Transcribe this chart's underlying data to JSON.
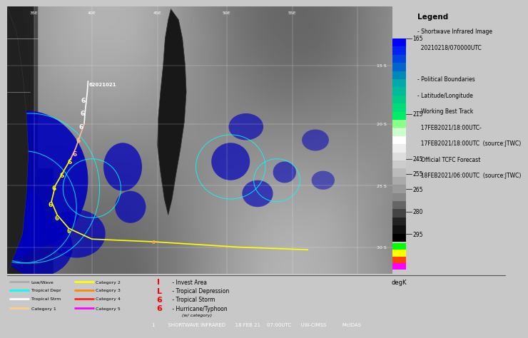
{
  "main_bg": "#c8c8c8",
  "sat_bg": "#888888",
  "legend_bg": "#ffffff",
  "bottom_legend_bg": "#d0d0d0",
  "bottom_bar_bg": "#111111",
  "bottom_bar_text": "1        SHORTWAVE INFRARED      18 FEB 21    07:00UTC      UW-CIMSS          McIDAS",
  "bottom_bar_color": "#ffffff",
  "legend_title": "Legend",
  "legend_lines": [
    "- Shortwave Infrared Image",
    "  20210218/070000UTC",
    "",
    "- Political Boundaries",
    "- Latitude/Longitude",
    "- Working Best Track",
    "  17FEB2021/18:00UTC-",
    "  17FEB2021/18:00UTC  (source:JTWC)",
    "- Official TCFC Forecast",
    "  18FEB2021/06:00UTC  (source:JTWC)"
  ],
  "colorbar_label": "degK",
  "colorbar_tick_vals": [
    165,
    215,
    245,
    255,
    265,
    280,
    295
  ],
  "bottom_legend_left": [
    {
      "color": "#aaaaaa",
      "label": "Low/Wave"
    },
    {
      "color": "#00ffff",
      "label": "Tropical Depr"
    },
    {
      "color": "#ffffff",
      "label": "Tropical Strm"
    },
    {
      "color": "#ffcc88",
      "label": "Category 1"
    },
    {
      "color": "#ffff00",
      "label": "Category 2"
    },
    {
      "color": "#ff8800",
      "label": "Category 3"
    },
    {
      "color": "#ff2222",
      "label": "Category 4"
    },
    {
      "color": "#ff00ff",
      "label": "Category 5"
    }
  ],
  "bottom_legend_right": [
    {
      "symbol": "I",
      "color": "#ff0000",
      "label": " - Invest Area"
    },
    {
      "symbol": "L",
      "color": "#ff0000",
      "label": " - Tropical Depression"
    },
    {
      "symbol": "6",
      "color": "#ff0000",
      "label": " - Tropical Storm"
    },
    {
      "symbol": "6",
      "color": "#ff0000",
      "label": " - Hurricane/Typhoon"
    }
  ],
  "bottom_legend_sublabel": "(w/ category)"
}
